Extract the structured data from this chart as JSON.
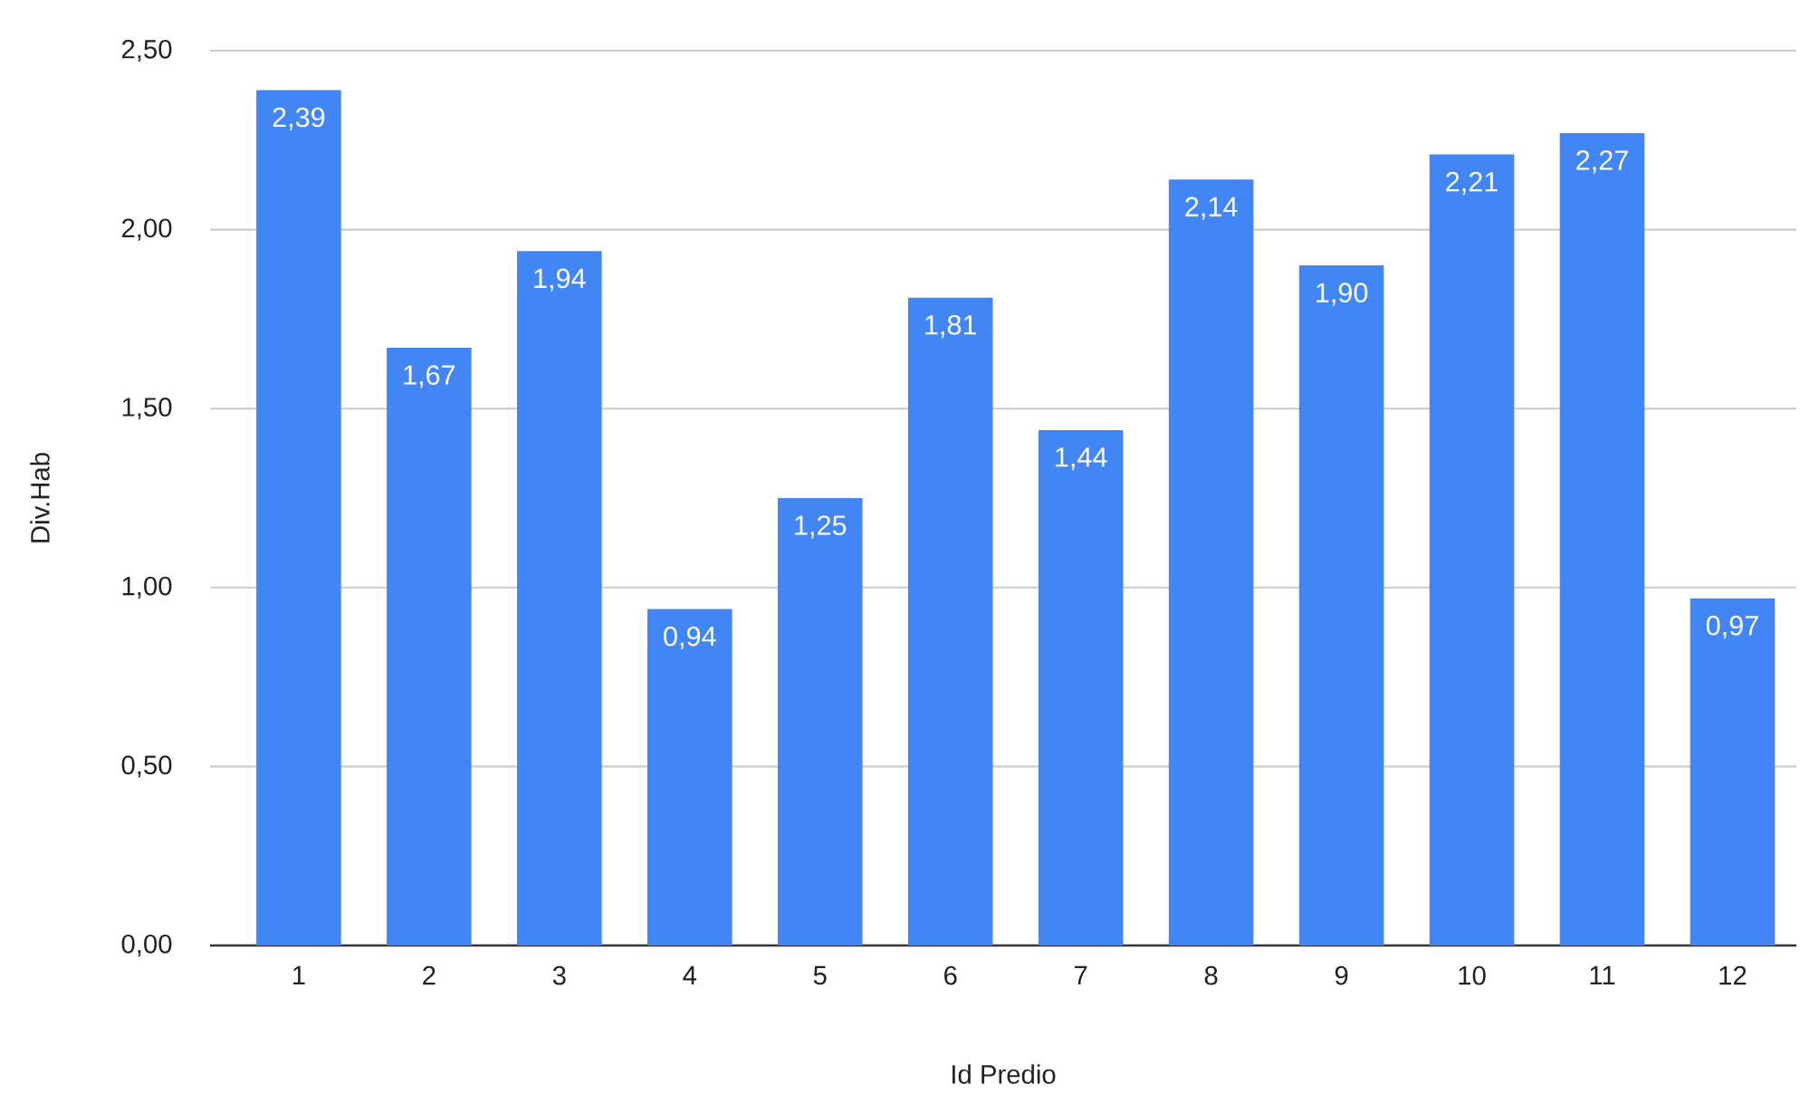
{
  "chart_data": {
    "type": "bar",
    "xlabel": "Id Predio",
    "ylabel": "Div.Hab",
    "categories": [
      "1",
      "2",
      "3",
      "4",
      "5",
      "6",
      "7",
      "8",
      "9",
      "10",
      "11",
      "12"
    ],
    "values": [
      2.39,
      1.67,
      1.94,
      0.94,
      1.25,
      1.81,
      1.44,
      2.14,
      1.9,
      2.21,
      2.27,
      0.97
    ],
    "value_labels": [
      "2,39",
      "1,67",
      "1,94",
      "0,94",
      "1,25",
      "1,81",
      "1,44",
      "2,14",
      "1,90",
      "2,21",
      "2,27",
      "0,97"
    ],
    "color": "#4285f4",
    "ylim": [
      0,
      2.5
    ],
    "yticks": [
      {
        "value": 0,
        "label": "0,00"
      },
      {
        "value": 0.5,
        "label": "0,50"
      },
      {
        "value": 1.0,
        "label": "1,00"
      },
      {
        "value": 1.5,
        "label": "1,50"
      },
      {
        "value": 2.0,
        "label": "2,00"
      },
      {
        "value": 2.5,
        "label": "2,50"
      }
    ],
    "grid": "y"
  }
}
